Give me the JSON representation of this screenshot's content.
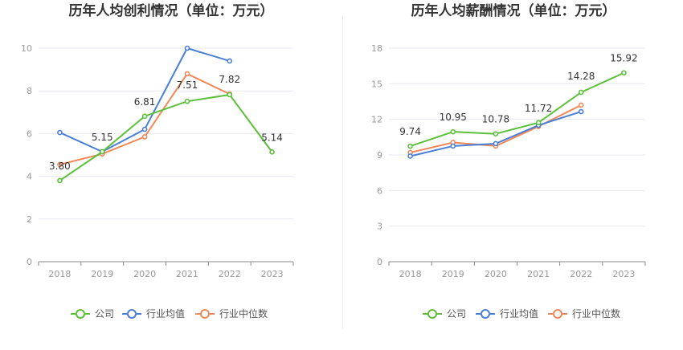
{
  "colors": {
    "company": "#5cc03a",
    "industry_avg": "#4a7fd8",
    "industry_median": "#f0895a"
  },
  "legend": {
    "company": "公司",
    "industry_avg": "行业均值",
    "industry_median": "行业中位数"
  },
  "chart_data": [
    {
      "type": "line",
      "title": "历年人均创利情况（单位：万元）",
      "categories": [
        "2018",
        "2019",
        "2020",
        "2021",
        "2022",
        "2023"
      ],
      "ylim": [
        0,
        10
      ],
      "yticks": [
        0,
        2,
        4,
        6,
        8,
        10
      ],
      "grid": true,
      "legend_position": "bottom",
      "series": [
        {
          "name": "公司",
          "key": "company",
          "values": [
            3.8,
            5.15,
            6.81,
            7.51,
            7.82,
            5.14
          ],
          "labels": [
            "3.80",
            "5.15",
            "6.81",
            "7.51",
            "7.82",
            "5.14"
          ]
        },
        {
          "name": "行业均值",
          "key": "industry_avg",
          "values": [
            6.05,
            5.15,
            6.2,
            10.0,
            9.4,
            null
          ]
        },
        {
          "name": "行业中位数",
          "key": "industry_median",
          "values": [
            4.55,
            5.05,
            5.85,
            8.8,
            7.85,
            null
          ]
        }
      ]
    },
    {
      "type": "line",
      "title": "历年人均薪酬情况（单位：万元）",
      "categories": [
        "2018",
        "2019",
        "2020",
        "2021",
        "2022",
        "2023"
      ],
      "ylim": [
        0,
        18
      ],
      "yticks": [
        0,
        3,
        6,
        9,
        12,
        15,
        18
      ],
      "grid": true,
      "legend_position": "bottom",
      "series": [
        {
          "name": "公司",
          "key": "company",
          "values": [
            9.74,
            10.95,
            10.78,
            11.72,
            14.28,
            15.92
          ],
          "labels": [
            "9.74",
            "10.95",
            "10.78",
            "11.72",
            "14.28",
            "15.92"
          ]
        },
        {
          "name": "行业均值",
          "key": "industry_avg",
          "values": [
            8.9,
            9.75,
            9.95,
            11.5,
            12.65,
            null
          ]
        },
        {
          "name": "行业中位数",
          "key": "industry_median",
          "values": [
            9.2,
            10.05,
            9.75,
            11.4,
            13.2,
            null
          ]
        }
      ]
    }
  ]
}
